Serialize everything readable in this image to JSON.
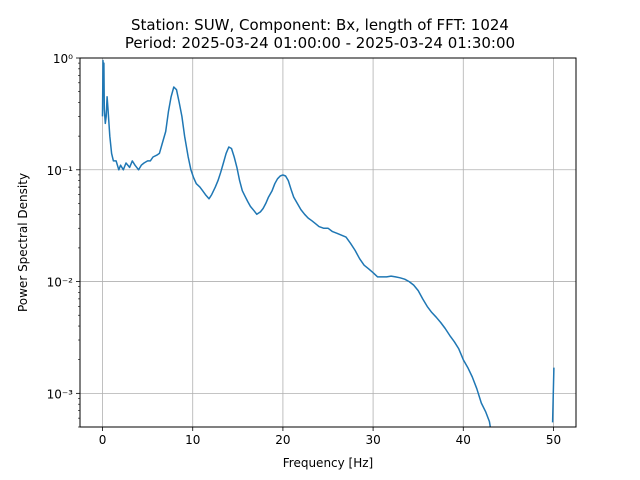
{
  "chart_data": {
    "type": "line",
    "title_line1": "Station: SUW, Component: Bx, length of FFT: 1024",
    "title_line2": "Period: 2025-03-24 01:00:00 - 2025-03-24 01:30:00",
    "xlabel": "Frequency [Hz]",
    "ylabel": "Power Spectral Density",
    "xlim": [
      -2.5,
      52.5
    ],
    "ylim": [
      0.0005,
      1
    ],
    "yscale": "log",
    "grid": true,
    "line_color": "#1f77b4",
    "x_ticks": [
      0,
      10,
      20,
      30,
      40,
      50
    ],
    "x_tick_labels": [
      "0",
      "10",
      "20",
      "30",
      "40",
      "50"
    ],
    "y_ticks": [
      0.001,
      0.01,
      0.1,
      1
    ],
    "y_tick_labels": [
      "10⁻³",
      "10⁻²",
      "10⁻¹",
      "10⁰"
    ],
    "series": [
      {
        "x": [
          0.0,
          0.05,
          0.1,
          0.15,
          0.2,
          0.3,
          0.4,
          0.5,
          0.6,
          0.8,
          1.0,
          1.2,
          1.5,
          1.8,
          2.0,
          2.3,
          2.6,
          3.0,
          3.3,
          3.6,
          4.0,
          4.3,
          4.6,
          5.0,
          5.3,
          5.6,
          6.0,
          6.3,
          6.6,
          7.0,
          7.3,
          7.6,
          7.9,
          8.2,
          8.5,
          8.8,
          9.1,
          9.5,
          9.8,
          10.1,
          10.4,
          10.8,
          11.1,
          11.4,
          11.8,
          12.1,
          12.5,
          12.8,
          13.1,
          13.4,
          13.7,
          14.0,
          14.3,
          14.6,
          14.9,
          15.2,
          15.5,
          15.8,
          16.1,
          16.4,
          16.8,
          17.1,
          17.5,
          17.8,
          18.1,
          18.4,
          18.8,
          19.1,
          19.4,
          19.7,
          20.0,
          20.3,
          20.6,
          20.9,
          21.2,
          21.6,
          22.0,
          22.4,
          22.8,
          23.2,
          23.6,
          24.0,
          24.5,
          25.0,
          25.5,
          26.0,
          26.5,
          27.0,
          27.5,
          28.0,
          28.5,
          29.0,
          29.5,
          30.0,
          30.5,
          31.0,
          31.5,
          32.0,
          32.5,
          33.0,
          33.5,
          34.0,
          34.5,
          35.0,
          35.5,
          36.0,
          36.5,
          37.0,
          37.5,
          38.0,
          38.5,
          39.0,
          39.5,
          40.0,
          40.5,
          41.0,
          41.5,
          42.0,
          42.5,
          42.9,
          43.0
        ],
        "y": [
          0.3,
          0.95,
          0.5,
          0.9,
          0.35,
          0.26,
          0.3,
          0.45,
          0.35,
          0.2,
          0.14,
          0.12,
          0.12,
          0.1,
          0.11,
          0.1,
          0.115,
          0.105,
          0.12,
          0.11,
          0.1,
          0.11,
          0.115,
          0.12,
          0.12,
          0.13,
          0.135,
          0.14,
          0.17,
          0.22,
          0.33,
          0.45,
          0.55,
          0.52,
          0.4,
          0.3,
          0.2,
          0.13,
          0.1,
          0.085,
          0.075,
          0.07,
          0.065,
          0.06,
          0.055,
          0.06,
          0.07,
          0.08,
          0.095,
          0.115,
          0.14,
          0.16,
          0.155,
          0.13,
          0.105,
          0.08,
          0.065,
          0.058,
          0.052,
          0.047,
          0.043,
          0.04,
          0.042,
          0.045,
          0.05,
          0.057,
          0.065,
          0.075,
          0.083,
          0.088,
          0.09,
          0.088,
          0.08,
          0.067,
          0.057,
          0.05,
          0.044,
          0.04,
          0.037,
          0.035,
          0.033,
          0.031,
          0.03,
          0.03,
          0.028,
          0.027,
          0.026,
          0.025,
          0.022,
          0.019,
          0.016,
          0.014,
          0.013,
          0.012,
          0.011,
          0.011,
          0.011,
          0.0112,
          0.011,
          0.0108,
          0.0105,
          0.01,
          0.0093,
          0.0083,
          0.007,
          0.006,
          0.0053,
          0.0048,
          0.0043,
          0.0038,
          0.0033,
          0.0029,
          0.0025,
          0.002,
          0.0017,
          0.0014,
          0.0011,
          0.00082,
          0.00068,
          0.00056,
          0.00048
        ]
      },
      {
        "x": [
          49.9,
          50.0,
          50.05
        ],
        "y": [
          0.00055,
          0.0012,
          0.0017
        ]
      }
    ]
  }
}
